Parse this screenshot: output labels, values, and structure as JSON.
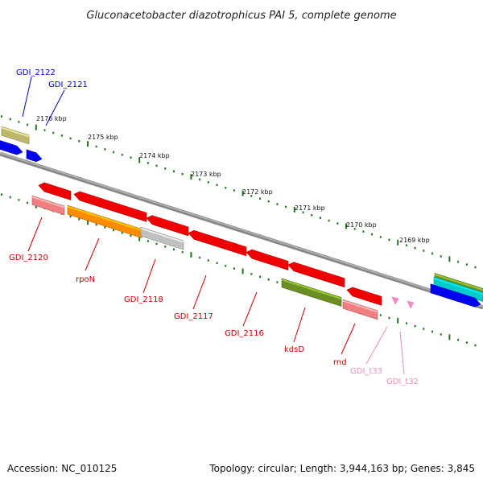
{
  "title": "Gluconacetobacter diazotrophicus PAI 5, complete genome",
  "footer": {
    "accession": "Accession: NC_010125",
    "summary": "Topology: circular; Length: 3,944,163 bp; Genes: 3,845"
  },
  "scale_labels": [
    "2176 kbp",
    "2175 kbp",
    "2174 kbp",
    "2173 kbp",
    "2172 kbp",
    "2171 kbp",
    "2170 kbp",
    "2169 kbp"
  ],
  "genes": [
    {
      "name": "GDI_2122",
      "color": "#0000cc"
    },
    {
      "name": "GDI_2121",
      "color": "#0000cc"
    },
    {
      "name": "GDI_2120",
      "color": "#cc0000"
    },
    {
      "name": "rpoN",
      "color": "#cc0000"
    },
    {
      "name": "GDI_2118",
      "color": "#cc0000"
    },
    {
      "name": "GDI_2117",
      "color": "#cc0000"
    },
    {
      "name": "GDI_2116",
      "color": "#cc0000"
    },
    {
      "name": "kdsD",
      "color": "#cc0000"
    },
    {
      "name": "rnd",
      "color": "#cc0000"
    },
    {
      "name": "GDI_t33",
      "color": "#ee88bb"
    },
    {
      "name": "GDI_t32",
      "color": "#ee88bb"
    }
  ],
  "colors": {
    "backbone": "#8a8a8a",
    "tick": "#1f7a1f",
    "cds_red": "#ee0000",
    "cds_blue": "#0000ee",
    "cds_pink": "#f08080",
    "cds_orange": "#ff8c00",
    "cds_olive": "#6b8e23",
    "cds_khaki": "#bdb76b",
    "cds_gray": "#c0c0c0",
    "trna": "#ff88cc"
  }
}
